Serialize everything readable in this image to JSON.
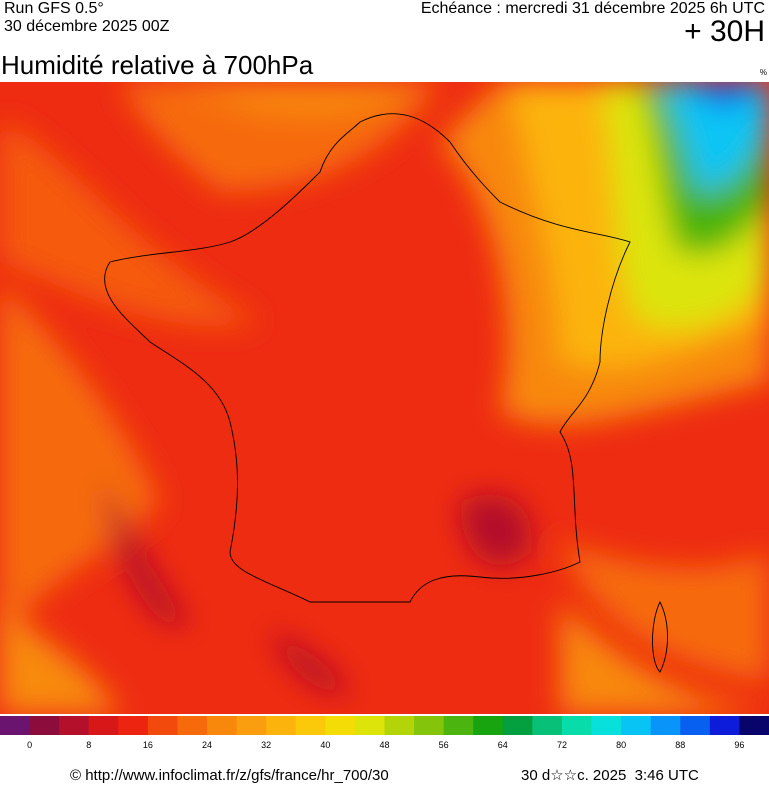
{
  "header": {
    "run": "Run GFS 0.5°",
    "run_date": "30 décembre 2025 00Z",
    "forecast": "Echéance : mercredi 31 décembre 2025 6h UTC",
    "lead": "+ 30H"
  },
  "title": "Humidité relative à 700hPa",
  "unit": "%",
  "scale": {
    "colors": [
      "#6a1470",
      "#8c0c3c",
      "#b4102c",
      "#d81818",
      "#ec2410",
      "#f24a0c",
      "#f66a0c",
      "#f8880c",
      "#fa9e10",
      "#fcb40c",
      "#fcc80a",
      "#f4dc06",
      "#dce40a",
      "#b4d40a",
      "#84c40a",
      "#4cb40e",
      "#18a40e",
      "#04a040",
      "#08c078",
      "#08dca8",
      "#08e0dc",
      "#08c4f4",
      "#0894f8",
      "#0860f0",
      "#0c1cd8",
      "#08046c"
    ],
    "ticks": [
      0,
      8,
      16,
      24,
      32,
      40,
      48,
      56,
      64,
      72,
      80,
      88,
      96
    ]
  },
  "footer": {
    "source": "© http://www.infoclimat.fr/z/gfs/france/hr_700/30",
    "stamp": "30 d☆☆c. 2025  3:46 UTC"
  }
}
